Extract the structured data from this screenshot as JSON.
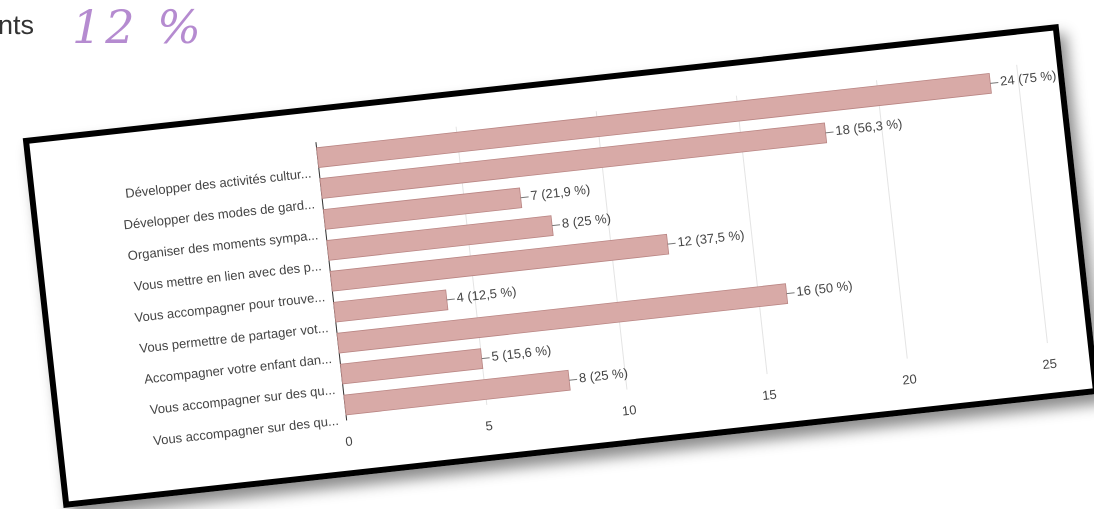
{
  "header": {
    "text": "nts",
    "note": "12 %"
  },
  "chart_data": {
    "type": "bar",
    "orientation": "horizontal",
    "categories": [
      "Développer des activités cultur...",
      "Développer des modes de gard...",
      "Organiser des moments sympa...",
      "Vous mettre en lien avec des p...",
      "Vous accompagner pour trouve...",
      "Vous permettre de partager vot...",
      "Accompagner votre enfant dan...",
      "Vous accompagner sur des qu...",
      "Vous accompagner sur des qu..."
    ],
    "values": [
      24,
      18,
      7,
      8,
      12,
      4,
      16,
      5,
      8
    ],
    "value_labels": [
      "24 (75 %)",
      "18 (56,3 %)",
      "7 (21,9 %)",
      "8 (25 %)",
      "12 (37,5 %)",
      "4 (12,5 %)",
      "16 (50 %)",
      "5 (15,6 %)",
      "8 (25 %)"
    ],
    "color": "#d8aaa7",
    "xlim": [
      0,
      25
    ],
    "xticks": [
      0,
      5,
      10,
      15,
      20,
      25
    ],
    "grid": true
  }
}
